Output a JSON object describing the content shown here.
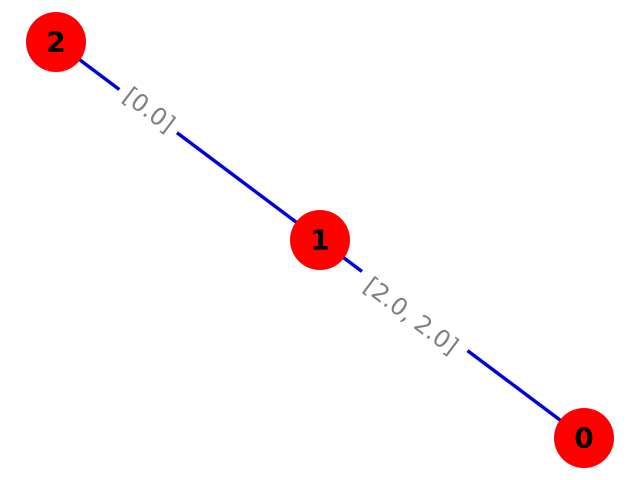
{
  "graph": {
    "colors": {
      "node_fill": "#ff0000",
      "edge_stroke": "#0000dd",
      "node_label": "#000000",
      "edge_label": "#808080",
      "background": "#ffffff"
    },
    "nodes": [
      {
        "id": "node-0",
        "label": "0"
      },
      {
        "id": "node-1",
        "label": "1"
      },
      {
        "id": "node-2",
        "label": "2"
      }
    ],
    "edges": [
      {
        "id": "edge-2-1",
        "from": "node-2",
        "to": "node-1",
        "label": "[0.0]"
      },
      {
        "id": "edge-1-0",
        "from": "node-1",
        "to": "node-0",
        "label": "[2.0, 2.0]"
      }
    ]
  }
}
